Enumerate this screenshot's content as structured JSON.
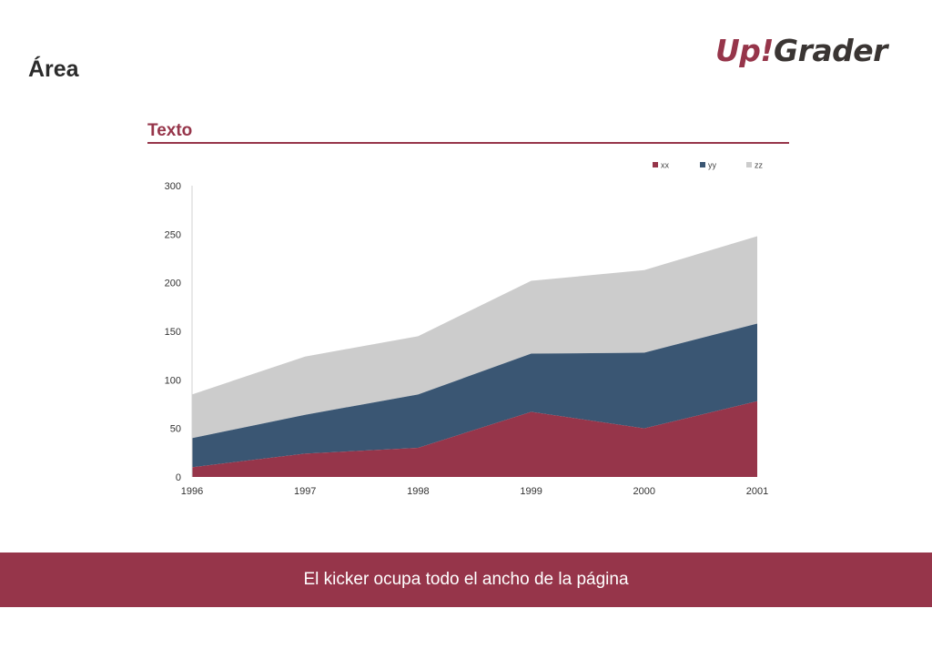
{
  "page": {
    "title": "Área",
    "logo": {
      "part1": "Up",
      "part2": "!",
      "part3": "Grader"
    },
    "section_title": "Texto",
    "kicker": "El kicker ocupa todo el ancho de la página"
  },
  "colors": {
    "accent": "#96354a",
    "xx": "#96354a",
    "yy": "#3a5673",
    "zz": "#cccccc"
  },
  "chart_data": {
    "type": "area",
    "stacked": true,
    "title": "",
    "xlabel": "",
    "ylabel": "",
    "x": [
      "1996",
      "1997",
      "1998",
      "1999",
      "2000",
      "2001"
    ],
    "ylim": [
      0,
      300
    ],
    "yticks": [
      "0",
      "50",
      "100",
      "150",
      "200",
      "250",
      "300"
    ],
    "legend_position": "top-right",
    "grid": false,
    "series": [
      {
        "name": "xx",
        "values": [
          10,
          24,
          30,
          67,
          50,
          78
        ]
      },
      {
        "name": "yy",
        "values": [
          30,
          40,
          55,
          60,
          78,
          80
        ]
      },
      {
        "name": "zz",
        "values": [
          45,
          60,
          60,
          75,
          85,
          90
        ]
      }
    ]
  }
}
